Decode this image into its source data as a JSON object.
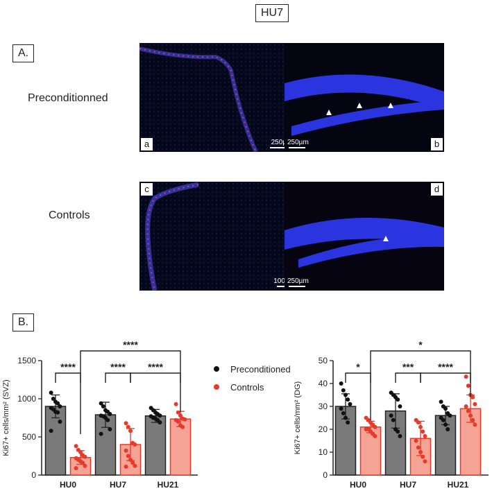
{
  "figure_title": "HU7",
  "part_a": {
    "label": "A.",
    "row_labels": [
      "Preconditionned",
      "Controls"
    ],
    "panels": [
      {
        "letter": "a",
        "scale": "250µm",
        "scale_pos": "bottom-right"
      },
      {
        "letter": "b",
        "scale": "250µm",
        "scale_pos": "bottom-left"
      },
      {
        "letter": "c",
        "scale": "100µm",
        "scale_pos": "bottom-right"
      },
      {
        "letter": "d",
        "scale": "250µm",
        "scale_pos": "bottom-left"
      }
    ]
  },
  "part_b": {
    "label": "B."
  },
  "legend": {
    "placement": "center",
    "items": [
      {
        "label": "Preconditioned",
        "color": "#111111"
      },
      {
        "label": "Controls",
        "color": "#e8392b"
      }
    ]
  },
  "colors": {
    "preconditioned_bar": "#7a7a7a",
    "controls_bar": "#f5a394",
    "controls_edge": "#e8392b",
    "stain_nuclei": "#2431d6",
    "stain_ki67": "#e0337a"
  },
  "chart_data": [
    {
      "type": "bar",
      "categories": [
        "HU0",
        "HU7",
        "HU21"
      ],
      "ylabel": "Ki67+ cells/mm² (SVZ)",
      "ylim": [
        0,
        1500
      ],
      "yticks": [
        "0",
        "500",
        "1000",
        "1500"
      ],
      "series": [
        {
          "name": "Preconditioned",
          "values": [
            900,
            790,
            775
          ],
          "errors": [
            150,
            165,
            85
          ],
          "points": [
            [
              1080,
              1000,
              960,
              940,
              900,
              880,
              860,
              830,
              820,
              700,
              580
            ],
            [
              940,
              900,
              850,
              830,
              800,
              780,
              770,
              750,
              720,
              600,
              540
            ],
            [
              880,
              850,
              820,
              800,
              780,
              770,
              750,
              740,
              720,
              690
            ]
          ]
        },
        {
          "name": "Controls",
          "values": [
            230,
            400,
            735
          ],
          "errors": [
            90,
            210,
            100
          ],
          "points": [
            [
              380,
              330,
              300,
              260,
              240,
              220,
              200,
              180,
              160,
              120,
              90
            ],
            [
              680,
              630,
              580,
              420,
              400,
              320,
              250,
              200,
              160,
              120,
              110
            ],
            [
              930,
              820,
              780,
              740,
              730,
              720,
              700,
              650,
              630
            ]
          ]
        }
      ],
      "brackets": [
        {
          "from": "HU0-Preconditioned",
          "to": "HU0-Controls",
          "label": "****"
        },
        {
          "from": "HU7-Preconditioned",
          "to": "HU7-Controls",
          "label": "****"
        },
        {
          "from": "HU7-Controls",
          "to": "HU21-Controls",
          "label": "****"
        },
        {
          "from": "HU0-Controls",
          "to": "HU21-Controls",
          "label": "****"
        }
      ]
    },
    {
      "type": "bar",
      "categories": [
        "HU0",
        "HU7",
        "HU21"
      ],
      "ylabel": "Ki67+ cells/mm² (DG)",
      "ylim": [
        0,
        50
      ],
      "yticks": [
        "0",
        "10",
        "20",
        "30",
        "40",
        "50"
      ],
      "series": [
        {
          "name": "Preconditioned",
          "values": [
            30,
            28,
            26
          ],
          "errors": [
            5.5,
            7.5,
            4
          ],
          "points": [
            [
              40,
              37,
              35,
              33,
              31,
              29,
              27,
              25,
              23
            ],
            [
              36,
              35,
              34,
              33,
              30,
              26,
              24,
              20,
              19,
              17
            ],
            [
              32,
              30,
              29,
              27,
              26,
              25,
              24,
              22,
              20
            ]
          ]
        },
        {
          "name": "Controls",
          "values": [
            21,
            16,
            29
          ],
          "errors": [
            2.5,
            7.5,
            6
          ],
          "points": [
            [
              25,
              24,
              23,
              22,
              21,
              20,
              20,
              19,
              18,
              17
            ],
            [
              24,
              23,
              21,
              19,
              17,
              15,
              12,
              10,
              8,
              6
            ],
            [
              43,
              39,
              35,
              34,
              31,
              30,
              28,
              26,
              24,
              22
            ]
          ]
        }
      ],
      "brackets": [
        {
          "from": "HU0-Preconditioned",
          "to": "HU0-Controls",
          "label": "*"
        },
        {
          "from": "HU7-Preconditioned",
          "to": "HU7-Controls",
          "label": "***"
        },
        {
          "from": "HU7-Controls",
          "to": "HU21-Controls",
          "label": "****"
        },
        {
          "from": "HU0-Controls",
          "to": "HU21-Controls",
          "label": "*"
        }
      ]
    }
  ]
}
